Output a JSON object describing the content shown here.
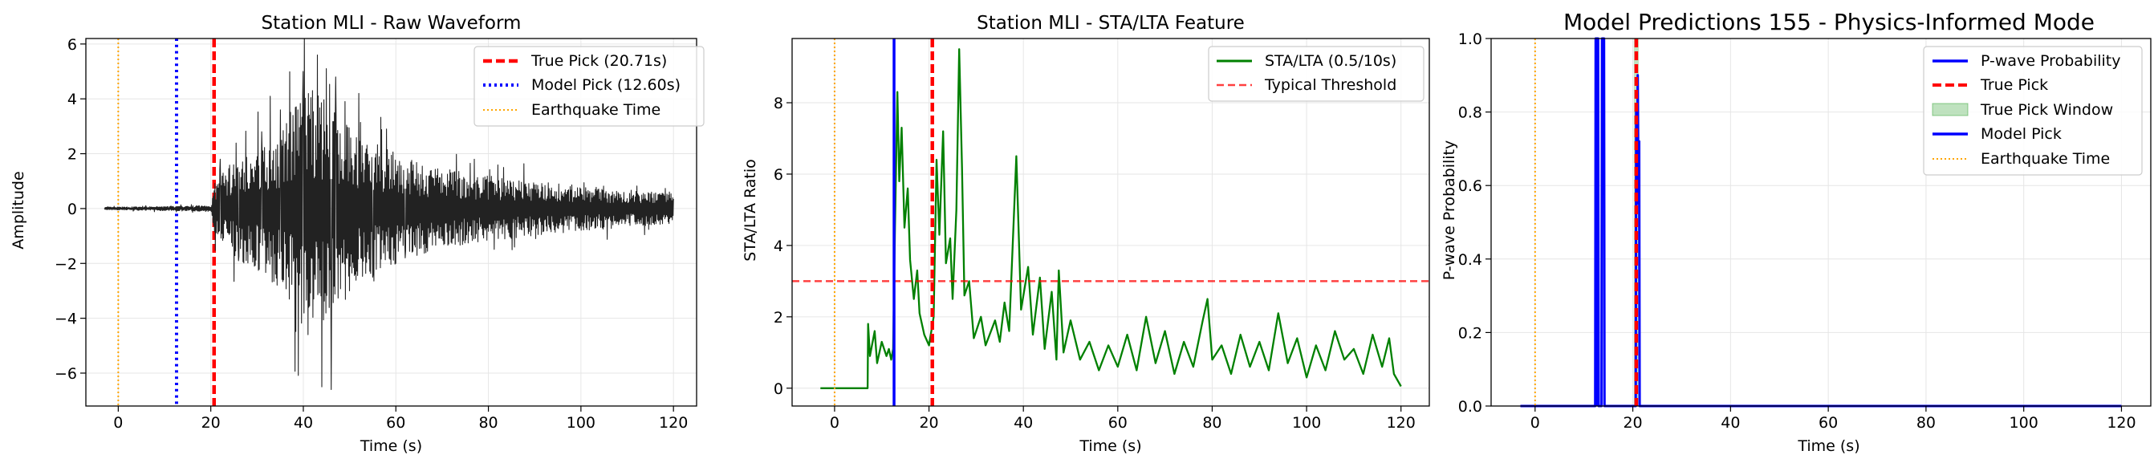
{
  "chart_data": [
    {
      "type": "line",
      "title": "Station MLI - Raw Waveform",
      "xlabel": "Time (s)",
      "ylabel": "Amplitude",
      "xlim": [
        -7,
        125
      ],
      "ylim": [
        -7.2,
        6.2
      ],
      "xticks": [
        0,
        20,
        40,
        60,
        80,
        100,
        120
      ],
      "yticks": [
        -6,
        -4,
        -2,
        0,
        2,
        4,
        6
      ],
      "xtick_labels": [
        "0",
        "20",
        "40",
        "60",
        "80",
        "100",
        "120"
      ],
      "ytick_labels": [
        "−6",
        "−4",
        "−2",
        "0",
        "2",
        "4",
        "6"
      ],
      "grid": true,
      "legend_position": "top-right",
      "series": [
        {
          "name": "True Pick (20.71s)",
          "kind": "vline",
          "x": 20.71,
          "color": "#ff0000",
          "style": "dashed"
        },
        {
          "name": "Model Pick (12.60s)",
          "kind": "vline",
          "x": 12.6,
          "color": "#0000ff",
          "style": "dotted"
        },
        {
          "name": "Earthquake Time",
          "kind": "vline",
          "x": 0,
          "color": "#ffa500",
          "style": "dotted"
        },
        {
          "kind": "waveform",
          "color": "#222222",
          "x_start": -3,
          "x_end": 120,
          "onset": 20.71,
          "envelope": [
            [
              -3,
              0.05
            ],
            [
              12,
              0.08
            ],
            [
              20,
              0.12
            ],
            [
              20.71,
              0.9
            ],
            [
              24,
              1.6
            ],
            [
              30,
              2.3
            ],
            [
              36,
              3.1
            ],
            [
              40,
              4.6
            ],
            [
              44,
              4.2
            ],
            [
              48,
              3.2
            ],
            [
              55,
              2.4
            ],
            [
              65,
              1.7
            ],
            [
              75,
              1.3
            ],
            [
              90,
              1.0
            ],
            [
              105,
              0.75
            ],
            [
              120,
              0.55
            ]
          ],
          "peaks": [
            [
              22,
              1.8
            ],
            [
              26,
              -1.9
            ],
            [
              31,
              2.8
            ],
            [
              35,
              3.6
            ],
            [
              37,
              -3.3
            ],
            [
              40,
              5.0
            ],
            [
              41,
              -4.6
            ],
            [
              42,
              4.3
            ],
            [
              43,
              5.6
            ],
            [
              44,
              -6.5
            ],
            [
              45,
              5.1
            ],
            [
              46,
              -6.6
            ],
            [
              47,
              4.8
            ],
            [
              49,
              3.9
            ],
            [
              50,
              -3.0
            ],
            [
              52,
              4.2
            ],
            [
              55,
              -2.5
            ],
            [
              58,
              2.9
            ],
            [
              62,
              -1.8
            ]
          ]
        }
      ]
    },
    {
      "type": "line",
      "title": "Station MLI - STA/LTA Feature",
      "xlabel": "Time (s)",
      "ylabel": "STA/LTA Ratio",
      "xlim": [
        -9,
        126
      ],
      "ylim": [
        -0.5,
        9.8
      ],
      "xticks": [
        0,
        20,
        40,
        60,
        80,
        100,
        120
      ],
      "yticks": [
        0,
        2,
        4,
        6,
        8
      ],
      "xtick_labels": [
        "0",
        "20",
        "40",
        "60",
        "80",
        "100",
        "120"
      ],
      "ytick_labels": [
        "0",
        "2",
        "4",
        "6",
        "8"
      ],
      "grid": true,
      "legend_position": "top-right",
      "series": [
        {
          "name": "STA/LTA (0.5/10s)",
          "kind": "sta_lta",
          "color": "#008000",
          "style": "solid",
          "points": [
            [
              -3,
              0
            ],
            [
              7,
              0
            ],
            [
              7.1,
              1.8
            ],
            [
              7.5,
              0.9
            ],
            [
              8.5,
              1.6
            ],
            [
              9,
              0.7
            ],
            [
              10,
              1.3
            ],
            [
              11,
              0.9
            ],
            [
              11.5,
              1.1
            ],
            [
              12,
              0.8
            ],
            [
              12.4,
              1.1
            ],
            [
              12.8,
              4.5
            ],
            [
              13.3,
              8.3
            ],
            [
              13.7,
              5.8
            ],
            [
              14.2,
              7.3
            ],
            [
              14.8,
              4.5
            ],
            [
              15.5,
              5.6
            ],
            [
              16,
              3.6
            ],
            [
              16.8,
              2.5
            ],
            [
              17.5,
              3.3
            ],
            [
              18,
              2.1
            ],
            [
              19,
              1.5
            ],
            [
              20,
              1.2
            ],
            [
              21,
              2.0
            ],
            [
              21.6,
              6.4
            ],
            [
              22.2,
              4.3
            ],
            [
              23,
              7.2
            ],
            [
              23.6,
              3.5
            ],
            [
              24.5,
              4.2
            ],
            [
              25,
              2.5
            ],
            [
              25.8,
              5.0
            ],
            [
              26.4,
              9.5
            ],
            [
              27,
              6.2
            ],
            [
              27.5,
              2.6
            ],
            [
              28.5,
              3.0
            ],
            [
              29.5,
              1.4
            ],
            [
              31,
              2.0
            ],
            [
              32,
              1.2
            ],
            [
              34,
              1.9
            ],
            [
              35,
              1.3
            ],
            [
              36,
              2.4
            ],
            [
              37,
              1.6
            ],
            [
              38.5,
              6.5
            ],
            [
              39.5,
              2.2
            ],
            [
              41,
              3.4
            ],
            [
              42,
              1.5
            ],
            [
              43.5,
              3.1
            ],
            [
              44.5,
              1.1
            ],
            [
              46,
              2.7
            ],
            [
              47,
              0.8
            ],
            [
              47.5,
              3.3
            ],
            [
              48.5,
              1.0
            ],
            [
              50,
              1.9
            ],
            [
              52,
              0.8
            ],
            [
              54,
              1.3
            ],
            [
              56,
              0.5
            ],
            [
              58,
              1.2
            ],
            [
              60,
              0.6
            ],
            [
              62,
              1.5
            ],
            [
              64,
              0.5
            ],
            [
              66,
              2.0
            ],
            [
              68,
              0.7
            ],
            [
              70,
              1.6
            ],
            [
              72,
              0.4
            ],
            [
              74,
              1.3
            ],
            [
              76,
              0.6
            ],
            [
              78,
              1.9
            ],
            [
              79,
              2.5
            ],
            [
              80,
              0.8
            ],
            [
              82,
              1.2
            ],
            [
              84,
              0.4
            ],
            [
              86,
              1.5
            ],
            [
              88,
              0.6
            ],
            [
              90,
              1.3
            ],
            [
              92,
              0.5
            ],
            [
              94,
              2.1
            ],
            [
              96,
              0.7
            ],
            [
              98,
              1.4
            ],
            [
              100,
              0.3
            ],
            [
              102,
              1.2
            ],
            [
              104,
              0.5
            ],
            [
              106,
              1.6
            ],
            [
              108,
              0.8
            ],
            [
              110,
              1.1
            ],
            [
              112,
              0.4
            ],
            [
              114,
              1.5
            ],
            [
              116,
              0.6
            ],
            [
              117.5,
              1.4
            ],
            [
              118.5,
              0.4
            ],
            [
              120,
              0.05
            ]
          ]
        },
        {
          "name": "Typical Threshold",
          "kind": "hline",
          "y": 3.0,
          "color": "#ff0000",
          "style": "dashed"
        },
        {
          "kind": "vline",
          "x": 12.6,
          "color": "#0000ff",
          "style": "solid"
        },
        {
          "kind": "vline",
          "x": 20.71,
          "color": "#ff0000",
          "style": "dashed"
        },
        {
          "kind": "vline",
          "x": 0,
          "color": "#ffa500",
          "style": "dotted"
        }
      ]
    },
    {
      "type": "line",
      "title": "Model Predictions 155 - Physics-Informed Mode",
      "xlabel": "Time (s)",
      "ylabel": "P-wave Probability",
      "xlim": [
        -9,
        126
      ],
      "ylim": [
        0.0,
        1.0
      ],
      "xticks": [
        0,
        20,
        40,
        60,
        80,
        100,
        120
      ],
      "yticks": [
        0.0,
        0.2,
        0.4,
        0.6,
        0.8,
        1.0
      ],
      "xtick_labels": [
        "0",
        "20",
        "40",
        "60",
        "80",
        "100",
        "120"
      ],
      "ytick_labels": [
        "0.0",
        "0.2",
        "0.4",
        "0.6",
        "0.8",
        "1.0"
      ],
      "grid": true,
      "legend_position": "top-right",
      "series": [
        {
          "name": "P-wave Probability",
          "kind": "line",
          "color": "#0000ff",
          "style": "solid",
          "points": [
            [
              -3,
              0
            ],
            [
              12.3,
              0
            ],
            [
              12.4,
              1.0
            ],
            [
              12.9,
              1.0
            ],
            [
              13.0,
              0
            ],
            [
              13.6,
              0
            ],
            [
              13.7,
              1.0
            ],
            [
              14.1,
              1.0
            ],
            [
              14.2,
              0
            ],
            [
              20.6,
              0
            ],
            [
              20.7,
              0.82
            ],
            [
              20.85,
              0.55
            ],
            [
              21.0,
              0.9
            ],
            [
              21.15,
              0.6
            ],
            [
              21.3,
              0.72
            ],
            [
              21.4,
              0
            ],
            [
              120,
              0
            ]
          ]
        },
        {
          "name": "True Pick",
          "kind": "vline",
          "x": 20.71,
          "color": "#ff0000",
          "style": "dashed"
        },
        {
          "name": "True Pick Window",
          "kind": "band",
          "x0": 20.21,
          "x1": 21.21,
          "color": "#2ca02c",
          "opacity": 0.3
        },
        {
          "name": "Model Pick",
          "kind": "vline",
          "x": 12.6,
          "color": "#0000ff",
          "style": "solid"
        },
        {
          "name": "Earthquake Time",
          "kind": "vline",
          "x": 0,
          "color": "#ffa500",
          "style": "dotted"
        }
      ]
    }
  ]
}
